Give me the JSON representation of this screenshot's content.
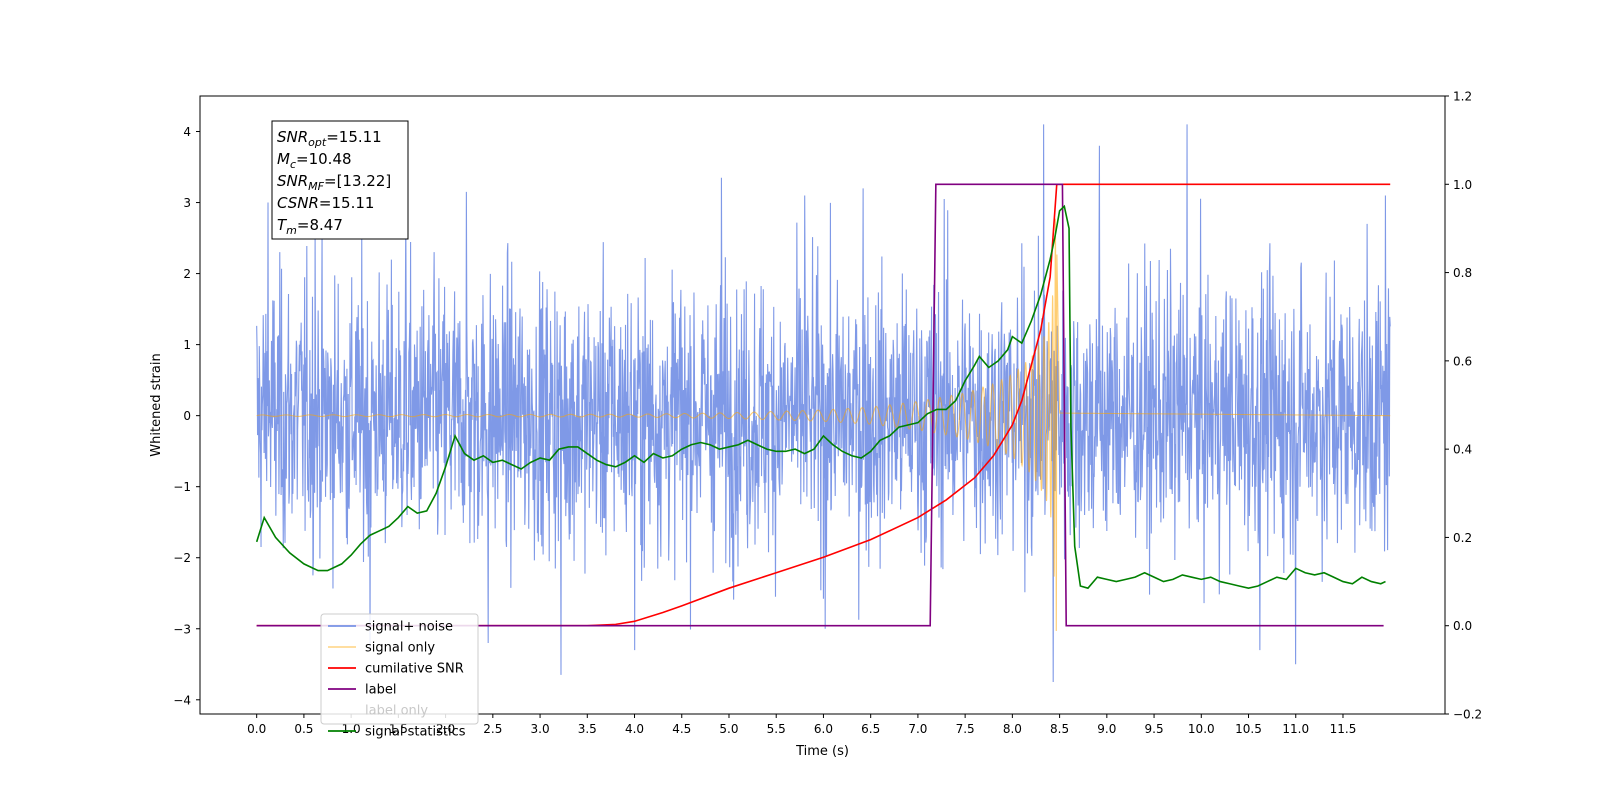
{
  "chart_data": {
    "type": "line",
    "xlabel": "Time (s)",
    "ylabel": "Whitened strain",
    "xlim": [
      -0.6,
      12.58
    ],
    "ylim": [
      -4.2,
      4.5
    ],
    "y2lim": [
      -0.2,
      1.2
    ],
    "x_ticks": [
      0.0,
      0.5,
      1.0,
      1.5,
      2.0,
      2.5,
      3.0,
      3.5,
      4.0,
      4.5,
      5.0,
      5.5,
      6.0,
      6.5,
      7.0,
      7.5,
      8.0,
      8.5,
      9.0,
      9.5,
      10.0,
      10.5,
      11.0,
      11.5
    ],
    "x_tick_labels": [
      "0.0",
      "0.5",
      "1.0",
      "1.5",
      "2.0",
      "2.5",
      "3.0",
      "3.5",
      "4.0",
      "4.5",
      "5.0",
      "5.5",
      "6.0",
      "6.5",
      "7.0",
      "7.5",
      "8.0",
      "8.5",
      "9.0",
      "9.5",
      "10.0",
      "10.5",
      "11.0",
      "11.5"
    ],
    "y_ticks": [
      -4,
      -3,
      -2,
      -1,
      0,
      1,
      2,
      3,
      4
    ],
    "y_tick_labels": [
      "−4",
      "−3",
      "−2",
      "−1",
      "0",
      "1",
      "2",
      "3",
      "4"
    ],
    "y2_ticks": [
      -0.2,
      0.0,
      0.2,
      0.4,
      0.6,
      0.8,
      1.0,
      1.2
    ],
    "y2_tick_labels": [
      "−0.2",
      "0.0",
      "0.2",
      "0.4",
      "0.6",
      "0.8",
      "1.0",
      "1.2"
    ],
    "grid": false,
    "legend_position": "lower-left",
    "annotation_box": {
      "position": "top-left",
      "lines": [
        {
          "sym": "SNR",
          "sub": "opt",
          "value": "=15.11"
        },
        {
          "sym": "M",
          "sub": "c",
          "value": "=10.48"
        },
        {
          "sym": "SNR",
          "sub": "MF",
          "value": "=[13.22]"
        },
        {
          "sym": "CSNR",
          "sub": "",
          "value": "=15.11"
        },
        {
          "sym": "T",
          "sub": "m",
          "value": "=8.47"
        }
      ]
    },
    "series": [
      {
        "name": "signal+ noise",
        "axis": "left",
        "color": "#7893e6",
        "kind": "noise_band",
        "x_range": [
          0.0,
          12.0
        ],
        "baseline_sigma": 0.95,
        "peaks": [
          {
            "x": 0.12,
            "y": 3.0
          },
          {
            "x": 0.62,
            "y": 2.55
          },
          {
            "x": 1.58,
            "y": 2.9
          },
          {
            "x": 2.22,
            "y": 3.15
          },
          {
            "x": 3.22,
            "y": -3.65
          },
          {
            "x": 4.0,
            "y": -3.3
          },
          {
            "x": 4.92,
            "y": 3.35
          },
          {
            "x": 6.02,
            "y": -3.0
          },
          {
            "x": 6.42,
            "y": 3.2
          },
          {
            "x": 7.28,
            "y": 3.05
          },
          {
            "x": 8.33,
            "y": 4.1
          },
          {
            "x": 8.43,
            "y": -3.75
          },
          {
            "x": 8.92,
            "y": 3.8
          },
          {
            "x": 9.85,
            "y": 4.1
          },
          {
            "x": 10.62,
            "y": -3.3
          },
          {
            "x": 11.0,
            "y": -3.5
          },
          {
            "x": 11.95,
            "y": 3.1
          },
          {
            "x": 1.2,
            "y": -3.3
          },
          {
            "x": 2.45,
            "y": -3.2
          },
          {
            "x": 5.8,
            "y": 3.1
          }
        ]
      },
      {
        "name": "signal only",
        "axis": "left",
        "color": "#ffa500",
        "kind": "chirp",
        "x_range": [
          0.0,
          12.0
        ],
        "merger_time": 8.47,
        "envelope": [
          [
            0.0,
            0.01
          ],
          [
            4.0,
            0.02
          ],
          [
            5.0,
            0.04
          ],
          [
            6.0,
            0.08
          ],
          [
            6.5,
            0.12
          ],
          [
            7.0,
            0.2
          ],
          [
            7.5,
            0.32
          ],
          [
            7.8,
            0.45
          ],
          [
            8.0,
            0.58
          ],
          [
            8.2,
            0.82
          ],
          [
            8.35,
            1.15
          ],
          [
            8.42,
            1.5
          ],
          [
            8.47,
            3.3
          ],
          [
            8.5,
            0.05
          ],
          [
            12.0,
            0.0
          ]
        ]
      },
      {
        "name": "cumilative SNR",
        "axis": "right",
        "color": "#ff0000",
        "points": [
          [
            0.0,
            0.0
          ],
          [
            3.5,
            0.0
          ],
          [
            3.8,
            0.003
          ],
          [
            4.0,
            0.01
          ],
          [
            4.3,
            0.03
          ],
          [
            4.5,
            0.045
          ],
          [
            5.0,
            0.085
          ],
          [
            5.5,
            0.12
          ],
          [
            6.0,
            0.155
          ],
          [
            6.5,
            0.195
          ],
          [
            7.0,
            0.245
          ],
          [
            7.3,
            0.285
          ],
          [
            7.6,
            0.335
          ],
          [
            7.8,
            0.385
          ],
          [
            8.0,
            0.455
          ],
          [
            8.1,
            0.51
          ],
          [
            8.2,
            0.59
          ],
          [
            8.3,
            0.67
          ],
          [
            8.4,
            0.79
          ],
          [
            8.47,
            1.0
          ],
          [
            12.0,
            1.0
          ]
        ]
      },
      {
        "name": "label",
        "axis": "right",
        "color": "#800080",
        "points": [
          [
            0.0,
            0.0
          ],
          [
            7.13,
            0.0
          ],
          [
            7.19,
            1.0
          ],
          [
            8.53,
            1.0
          ],
          [
            8.57,
            0.0
          ],
          [
            11.93,
            0.0
          ]
        ]
      },
      {
        "name": "label only",
        "axis": "right",
        "color": "#ffffff",
        "points": []
      },
      {
        "name": "signal statistics",
        "axis": "right",
        "color": "#008000",
        "points": [
          [
            0.0,
            0.19
          ],
          [
            0.08,
            0.245
          ],
          [
            0.2,
            0.2
          ],
          [
            0.35,
            0.165
          ],
          [
            0.5,
            0.14
          ],
          [
            0.65,
            0.125
          ],
          [
            0.75,
            0.125
          ],
          [
            0.9,
            0.14
          ],
          [
            1.0,
            0.16
          ],
          [
            1.1,
            0.185
          ],
          [
            1.2,
            0.205
          ],
          [
            1.3,
            0.215
          ],
          [
            1.4,
            0.225
          ],
          [
            1.5,
            0.245
          ],
          [
            1.6,
            0.27
          ],
          [
            1.7,
            0.255
          ],
          [
            1.8,
            0.26
          ],
          [
            1.9,
            0.3
          ],
          [
            2.0,
            0.36
          ],
          [
            2.1,
            0.43
          ],
          [
            2.2,
            0.39
          ],
          [
            2.3,
            0.375
          ],
          [
            2.4,
            0.385
          ],
          [
            2.5,
            0.37
          ],
          [
            2.6,
            0.375
          ],
          [
            2.7,
            0.365
          ],
          [
            2.8,
            0.355
          ],
          [
            2.9,
            0.37
          ],
          [
            3.0,
            0.38
          ],
          [
            3.1,
            0.375
          ],
          [
            3.2,
            0.4
          ],
          [
            3.3,
            0.405
          ],
          [
            3.4,
            0.405
          ],
          [
            3.5,
            0.39
          ],
          [
            3.6,
            0.375
          ],
          [
            3.7,
            0.365
          ],
          [
            3.8,
            0.36
          ],
          [
            3.9,
            0.37
          ],
          [
            4.0,
            0.385
          ],
          [
            4.1,
            0.37
          ],
          [
            4.2,
            0.39
          ],
          [
            4.3,
            0.38
          ],
          [
            4.4,
            0.385
          ],
          [
            4.5,
            0.4
          ],
          [
            4.6,
            0.41
          ],
          [
            4.7,
            0.415
          ],
          [
            4.8,
            0.41
          ],
          [
            4.9,
            0.4
          ],
          [
            5.0,
            0.405
          ],
          [
            5.1,
            0.41
          ],
          [
            5.2,
            0.42
          ],
          [
            5.3,
            0.41
          ],
          [
            5.4,
            0.4
          ],
          [
            5.5,
            0.395
          ],
          [
            5.6,
            0.395
          ],
          [
            5.7,
            0.4
          ],
          [
            5.8,
            0.39
          ],
          [
            5.9,
            0.4
          ],
          [
            6.0,
            0.43
          ],
          [
            6.1,
            0.41
          ],
          [
            6.2,
            0.395
          ],
          [
            6.3,
            0.385
          ],
          [
            6.4,
            0.38
          ],
          [
            6.5,
            0.395
          ],
          [
            6.6,
            0.42
          ],
          [
            6.7,
            0.43
          ],
          [
            6.8,
            0.45
          ],
          [
            6.9,
            0.455
          ],
          [
            7.0,
            0.46
          ],
          [
            7.1,
            0.48
          ],
          [
            7.2,
            0.49
          ],
          [
            7.3,
            0.49
          ],
          [
            7.4,
            0.51
          ],
          [
            7.5,
            0.555
          ],
          [
            7.6,
            0.59
          ],
          [
            7.65,
            0.61
          ],
          [
            7.75,
            0.585
          ],
          [
            7.85,
            0.6
          ],
          [
            7.95,
            0.625
          ],
          [
            8.0,
            0.655
          ],
          [
            8.1,
            0.64
          ],
          [
            8.2,
            0.69
          ],
          [
            8.3,
            0.75
          ],
          [
            8.4,
            0.83
          ],
          [
            8.45,
            0.88
          ],
          [
            8.5,
            0.94
          ],
          [
            8.55,
            0.95
          ],
          [
            8.6,
            0.9
          ],
          [
            8.62,
            0.45
          ],
          [
            8.66,
            0.18
          ],
          [
            8.72,
            0.09
          ],
          [
            8.8,
            0.085
          ],
          [
            8.9,
            0.11
          ],
          [
            9.0,
            0.105
          ],
          [
            9.1,
            0.1
          ],
          [
            9.2,
            0.105
          ],
          [
            9.3,
            0.11
          ],
          [
            9.4,
            0.12
          ],
          [
            9.5,
            0.11
          ],
          [
            9.6,
            0.1
          ],
          [
            9.7,
            0.105
          ],
          [
            9.8,
            0.115
          ],
          [
            9.9,
            0.11
          ],
          [
            10.0,
            0.105
          ],
          [
            10.1,
            0.11
          ],
          [
            10.2,
            0.1
          ],
          [
            10.3,
            0.095
          ],
          [
            10.4,
            0.09
          ],
          [
            10.5,
            0.085
          ],
          [
            10.6,
            0.09
          ],
          [
            10.7,
            0.1
          ],
          [
            10.8,
            0.11
          ],
          [
            10.9,
            0.105
          ],
          [
            11.0,
            0.13
          ],
          [
            11.1,
            0.12
          ],
          [
            11.2,
            0.115
          ],
          [
            11.3,
            0.12
          ],
          [
            11.4,
            0.11
          ],
          [
            11.5,
            0.1
          ],
          [
            11.6,
            0.095
          ],
          [
            11.7,
            0.11
          ],
          [
            11.8,
            0.1
          ],
          [
            11.9,
            0.095
          ],
          [
            11.95,
            0.1
          ]
        ]
      }
    ]
  }
}
